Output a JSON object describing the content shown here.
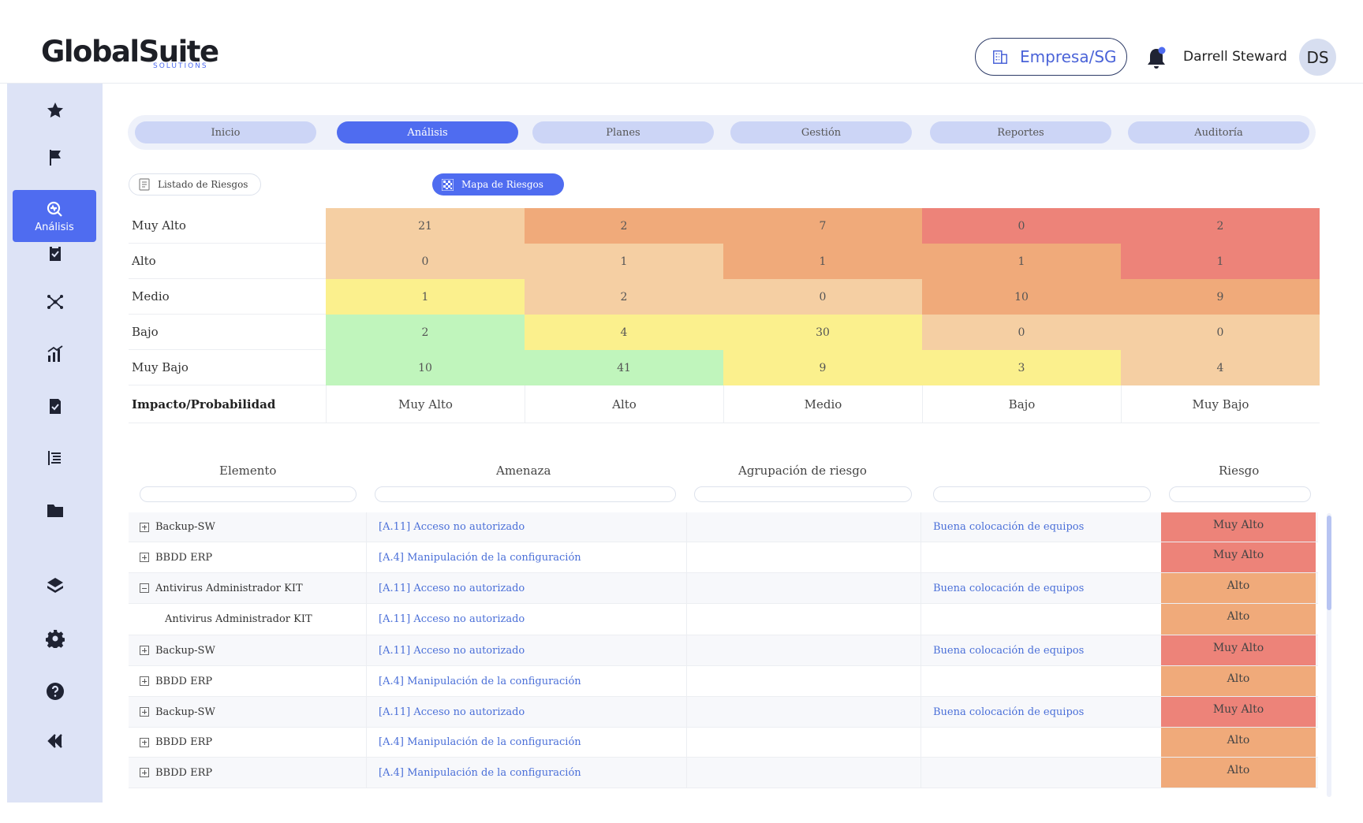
{
  "header": {
    "logo_main": "GlobalSuite",
    "logo_sub": "SOLUTIONS",
    "company_button": "Empresa/SG",
    "user_name": "Darrell Steward",
    "avatar_initials": "DS"
  },
  "sidebar": {
    "items": [
      {
        "icon": "star-icon"
      },
      {
        "icon": "flag-icon"
      },
      {
        "icon": "analysis-icon",
        "label": "Análisis",
        "active": true
      },
      {
        "icon": "clipboard-icon"
      },
      {
        "icon": "network-icon"
      },
      {
        "icon": "chart-icon"
      },
      {
        "icon": "checklist-icon"
      },
      {
        "icon": "list-icon"
      },
      {
        "icon": "folder-icon"
      },
      {
        "icon": "layers-icon"
      },
      {
        "icon": "gear-icon"
      },
      {
        "icon": "help-icon"
      },
      {
        "icon": "collapse-icon"
      }
    ]
  },
  "tabs": [
    "Inicio",
    "Análisis",
    "Planes",
    "Gestión",
    "Reportes",
    "Auditoría"
  ],
  "active_tab": "Análisis",
  "subnav": {
    "list_label": "Listado de Riesgos",
    "map_label": "Mapa de Riesgos"
  },
  "matrix": {
    "rows": [
      {
        "label": "Muy Alto",
        "values": [
          "21",
          "2",
          "7",
          "0",
          "2"
        ]
      },
      {
        "label": "Alto",
        "values": [
          "0",
          "1",
          "1",
          "1",
          "1"
        ]
      },
      {
        "label": "Medio",
        "values": [
          "1",
          "2",
          "0",
          "10",
          "9"
        ]
      },
      {
        "label": "Bajo",
        "values": [
          "2",
          "4",
          "30",
          "0",
          "0"
        ]
      },
      {
        "label": "Muy Bajo",
        "values": [
          "10",
          "41",
          "9",
          "3",
          "4"
        ]
      }
    ],
    "footer_label": "Impacto/Probabilidad",
    "columns": [
      "Muy Alto",
      "Alto",
      "Medio",
      "Bajo",
      "Muy Bajo"
    ],
    "colors": {
      "red": "#ed8379",
      "orange": "#f0aa7a",
      "peach": "#f5cfa3",
      "yellow": "#fbf08d",
      "green": "#c0f5bc"
    }
  },
  "table": {
    "headers": [
      "Elemento",
      "Amenaza",
      "Agrupación de riesgo",
      "",
      "Riesgo"
    ],
    "rows": [
      {
        "elemento": "Backup-SW",
        "expander": "plus",
        "amenaza": "[A.11] Acceso no autorizado",
        "agrupacion": "",
        "control": "Buena colocación de equipos",
        "riesgo": "Muy Alto"
      },
      {
        "elemento": "BBDD ERP",
        "expander": "plus",
        "amenaza": "[A.4] Manipulación de la configuración",
        "agrupacion": "",
        "control": "",
        "riesgo": "Muy Alto"
      },
      {
        "elemento": "Antivirus Administrador KIT",
        "expander": "minus",
        "amenaza": "[A.11] Acceso no autorizado",
        "agrupacion": "",
        "control": "Buena colocación de equipos",
        "riesgo": "Alto"
      },
      {
        "elemento": "Antivirus Administrador KIT",
        "expander": "none",
        "amenaza": "[A.11] Acceso no autorizado",
        "agrupacion": "",
        "control": "",
        "riesgo": "Alto"
      },
      {
        "elemento": "Backup-SW",
        "expander": "plus",
        "amenaza": "[A.11] Acceso no autorizado",
        "agrupacion": "",
        "control": "Buena colocación de equipos",
        "riesgo": "Muy Alto"
      },
      {
        "elemento": "BBDD ERP",
        "expander": "plus",
        "amenaza": "[A.4] Manipulación de la configuración",
        "agrupacion": "",
        "control": "",
        "riesgo": "Alto"
      },
      {
        "elemento": "Backup-SW",
        "expander": "plus",
        "amenaza": "[A.11] Acceso no autorizado",
        "agrupacion": "",
        "control": "Buena colocación de equipos",
        "riesgo": "Muy Alto"
      },
      {
        "elemento": "BBDD ERP",
        "expander": "plus",
        "amenaza": "[A.4] Manipulación de la configuración",
        "agrupacion": "",
        "control": "",
        "riesgo": "Alto"
      },
      {
        "elemento": "BBDD ERP",
        "expander": "plus",
        "amenaza": "[A.4] Manipulación de la configuración",
        "agrupacion": "",
        "control": "",
        "riesgo": "Alto"
      }
    ],
    "risk_colors": {
      "Muy Alto": "#ed8379",
      "Alto": "#f0aa7a"
    }
  },
  "colors": {
    "accent": "#4f6cf0",
    "sidebar_bg": "#dde3f6",
    "tab_bg": "#ccd5f6",
    "link": "#4a6fd8"
  }
}
